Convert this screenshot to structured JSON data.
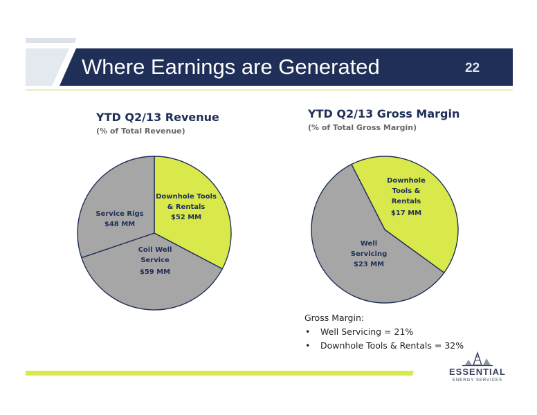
{
  "slide": {
    "title": "Where Earnings are Generated",
    "number": "22"
  },
  "colors": {
    "navy": "#1f2f57",
    "lime": "#d9e94b",
    "gray": "#a6a6a6",
    "pale_lime": "#eef4c0"
  },
  "chart_data": [
    {
      "type": "pie",
      "title": "YTD Q2/13 Revenue",
      "subtitle": "(% of Total Revenue)",
      "slices": [
        {
          "label": "Downhole Tools & Rentals",
          "value": 52,
          "display": "$52 MM",
          "color": "#d9e94b"
        },
        {
          "label": "Coil Well Service",
          "value": 59,
          "display": "$59 MM",
          "color": "#a6a6a6"
        },
        {
          "label": "Service Rigs",
          "value": 48,
          "display": "$48 MM",
          "color": "#a6a6a6"
        }
      ]
    },
    {
      "type": "pie",
      "title": "YTD Q2/13 Gross Margin",
      "subtitle": "(% of Total Gross Margin)",
      "slices": [
        {
          "label": "Downhole Tools & Rentals",
          "value": 17,
          "display": "$17 MM",
          "color": "#d9e94b"
        },
        {
          "label": "Well Servicing",
          "value": 23,
          "display": "$23 MM",
          "color": "#a6a6a6"
        }
      ]
    }
  ],
  "pie_labels": {
    "revenue": [
      {
        "line1": "Downhole Tools",
        "line2": "& Rentals",
        "value": "$52 MM"
      },
      {
        "line1": "Coil Well",
        "line2": "Service",
        "value": "$59 MM"
      },
      {
        "line1": "Service Rigs",
        "value": "$48 MM"
      }
    ],
    "margin": [
      {
        "line1": "Downhole",
        "line2": "Tools &",
        "line3": "Rentals",
        "value": "$17 MM"
      },
      {
        "line1": "Well",
        "line2": "Servicing",
        "value": "$23 MM"
      }
    ]
  },
  "notes": {
    "heading": "Gross Margin:",
    "bullet": "•",
    "items": [
      "Well Servicing = 21%",
      "Downhole Tools & Rentals =  32%"
    ]
  },
  "logo": {
    "icon": "oil-derrick-icon",
    "word": "ESSENTIAL",
    "sub": "ENERGY SERVICES"
  }
}
